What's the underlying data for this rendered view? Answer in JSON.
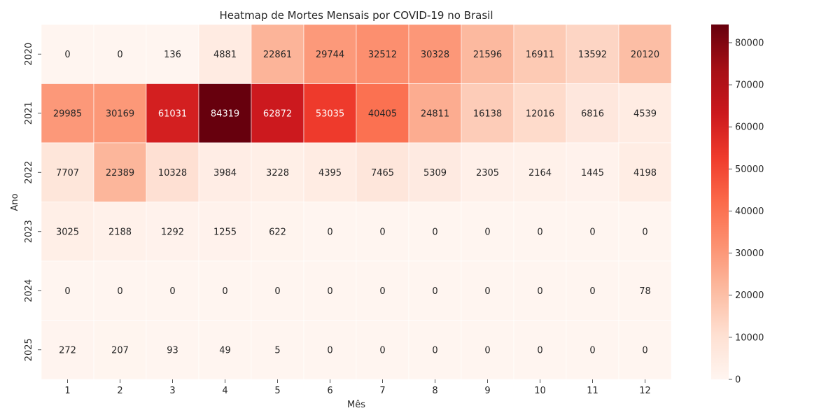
{
  "chart_data": {
    "type": "heatmap",
    "title": "Heatmap de Mortes Mensais por COVID-19 no Brasil",
    "xlabel": "Mês",
    "ylabel": "Ano",
    "x_categories": [
      "1",
      "2",
      "3",
      "4",
      "5",
      "6",
      "7",
      "8",
      "9",
      "10",
      "11",
      "12"
    ],
    "y_categories": [
      "2020",
      "2021",
      "2022",
      "2023",
      "2024",
      "2025"
    ],
    "values": [
      [
        0,
        0,
        136,
        4881,
        22861,
        29744,
        32512,
        30328,
        21596,
        16911,
        13592,
        20120
      ],
      [
        29985,
        30169,
        61031,
        84319,
        62872,
        53035,
        40405,
        24811,
        16138,
        12016,
        6816,
        4539
      ],
      [
        7707,
        22389,
        10328,
        3984,
        3228,
        4395,
        7465,
        5309,
        2305,
        2164,
        1445,
        4198
      ],
      [
        3025,
        2188,
        1292,
        1255,
        622,
        0,
        0,
        0,
        0,
        0,
        0,
        0
      ],
      [
        0,
        0,
        0,
        0,
        0,
        0,
        0,
        0,
        0,
        0,
        0,
        78
      ],
      [
        272,
        207,
        93,
        49,
        5,
        0,
        0,
        0,
        0,
        0,
        0,
        0
      ]
    ],
    "colormap": "Reds",
    "colorbar": {
      "range": [
        0,
        84319
      ],
      "ticks": [
        "0",
        "10000",
        "20000",
        "30000",
        "40000",
        "50000",
        "60000",
        "70000",
        "80000"
      ]
    },
    "annotations": true
  }
}
